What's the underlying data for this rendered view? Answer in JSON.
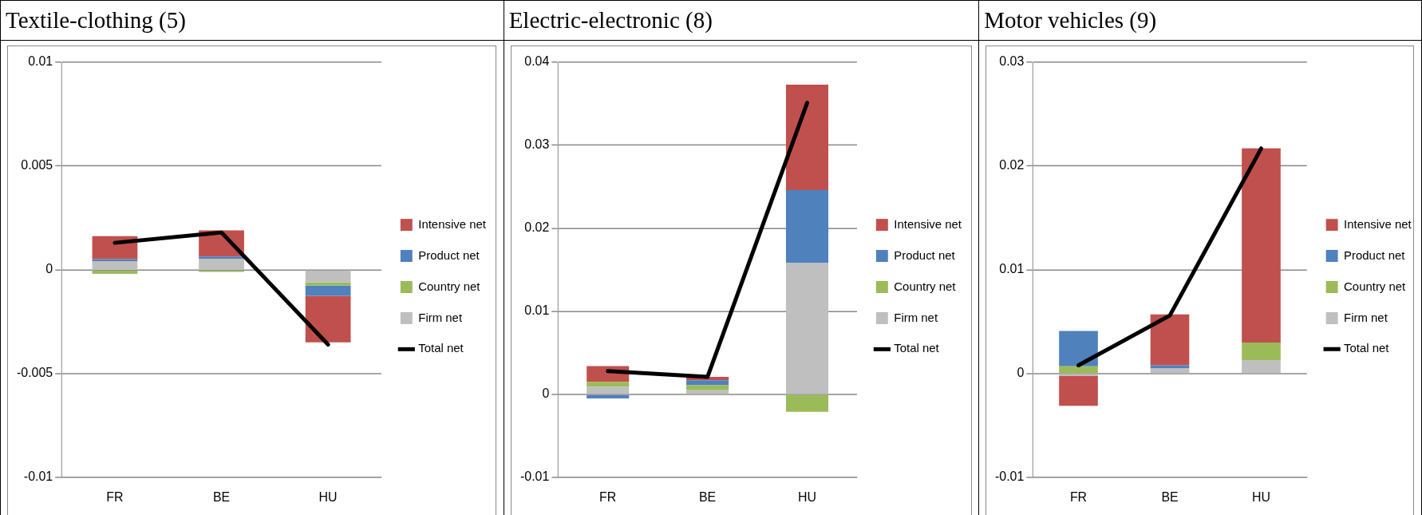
{
  "chart_data": [
    {
      "type": "bar",
      "title": "Textile-clothing (5)",
      "categories": [
        "FR",
        "BE",
        "HU"
      ],
      "stacked": true,
      "ylim": [
        -0.01,
        0.01
      ],
      "yticks": [
        -0.01,
        -0.005,
        0,
        0.005,
        0.01
      ],
      "grid": "y",
      "legend": "right",
      "marker": "none",
      "line_style": "solid",
      "series": [
        {
          "name": "Firm net",
          "color": "#bfbfbf",
          "values": [
            0.00042,
            0.00054,
            -0.0006
          ]
        },
        {
          "name": "Country net",
          "color": "#9bbb59",
          "values": [
            -0.0002,
            -0.0001,
            -0.00015
          ]
        },
        {
          "name": "Product net",
          "color": "#4f81bd",
          "values": [
            0.0001,
            0.0001,
            -0.0005
          ]
        },
        {
          "name": "Intensive net",
          "color": "#c0504d",
          "values": [
            0.0011,
            0.00126,
            -0.00224
          ]
        },
        {
          "name": "Total net",
          "type": "line",
          "color": "#000000",
          "values": [
            0.0013,
            0.0018,
            -0.0036
          ]
        }
      ]
    },
    {
      "type": "bar",
      "title": "Electric-electronic (8)",
      "categories": [
        "FR",
        "BE",
        "HU"
      ],
      "stacked": true,
      "ylim": [
        -0.01,
        0.04
      ],
      "yticks": [
        -0.01,
        0,
        0.01,
        0.02,
        0.03,
        0.04
      ],
      "grid": "y",
      "legend": "right",
      "marker": "none",
      "line_style": "solid",
      "series": [
        {
          "name": "Firm net",
          "color": "#bfbfbf",
          "values": [
            0.0009,
            0.0005,
            0.0158
          ]
        },
        {
          "name": "Country net",
          "color": "#9bbb59",
          "values": [
            0.0006,
            0.0006,
            -0.0021
          ]
        },
        {
          "name": "Product net",
          "color": "#4f81bd",
          "values": [
            -0.0005,
            0.0006,
            0.0088
          ]
        },
        {
          "name": "Intensive net",
          "color": "#c0504d",
          "values": [
            0.0019,
            0.0004,
            0.0127
          ]
        },
        {
          "name": "Total net",
          "type": "line",
          "color": "#000000",
          "values": [
            0.0028,
            0.0021,
            0.0351
          ]
        }
      ]
    },
    {
      "type": "bar",
      "title": "Motor vehicles (9)",
      "categories": [
        "FR",
        "BE",
        "HU"
      ],
      "stacked": true,
      "ylim": [
        -0.01,
        0.03
      ],
      "yticks": [
        -0.01,
        0,
        0.01,
        0.02,
        0.03
      ],
      "grid": "y",
      "legend": "right",
      "marker": "none",
      "line_style": "solid",
      "series": [
        {
          "name": "Firm net",
          "color": "#bfbfbf",
          "values": [
            -0.0002,
            0.0005,
            0.0013
          ]
        },
        {
          "name": "Country net",
          "color": "#9bbb59",
          "values": [
            0.0007,
            0,
            0.0017
          ]
        },
        {
          "name": "Product net",
          "color": "#4f81bd",
          "values": [
            0.0034,
            0.0003,
            0
          ]
        },
        {
          "name": "Intensive net",
          "color": "#c0504d",
          "values": [
            -0.0029,
            0.0049,
            0.0187
          ]
        },
        {
          "name": "Total net",
          "type": "line",
          "color": "#000000",
          "values": [
            0.0008,
            0.0056,
            0.0217
          ]
        }
      ]
    }
  ]
}
